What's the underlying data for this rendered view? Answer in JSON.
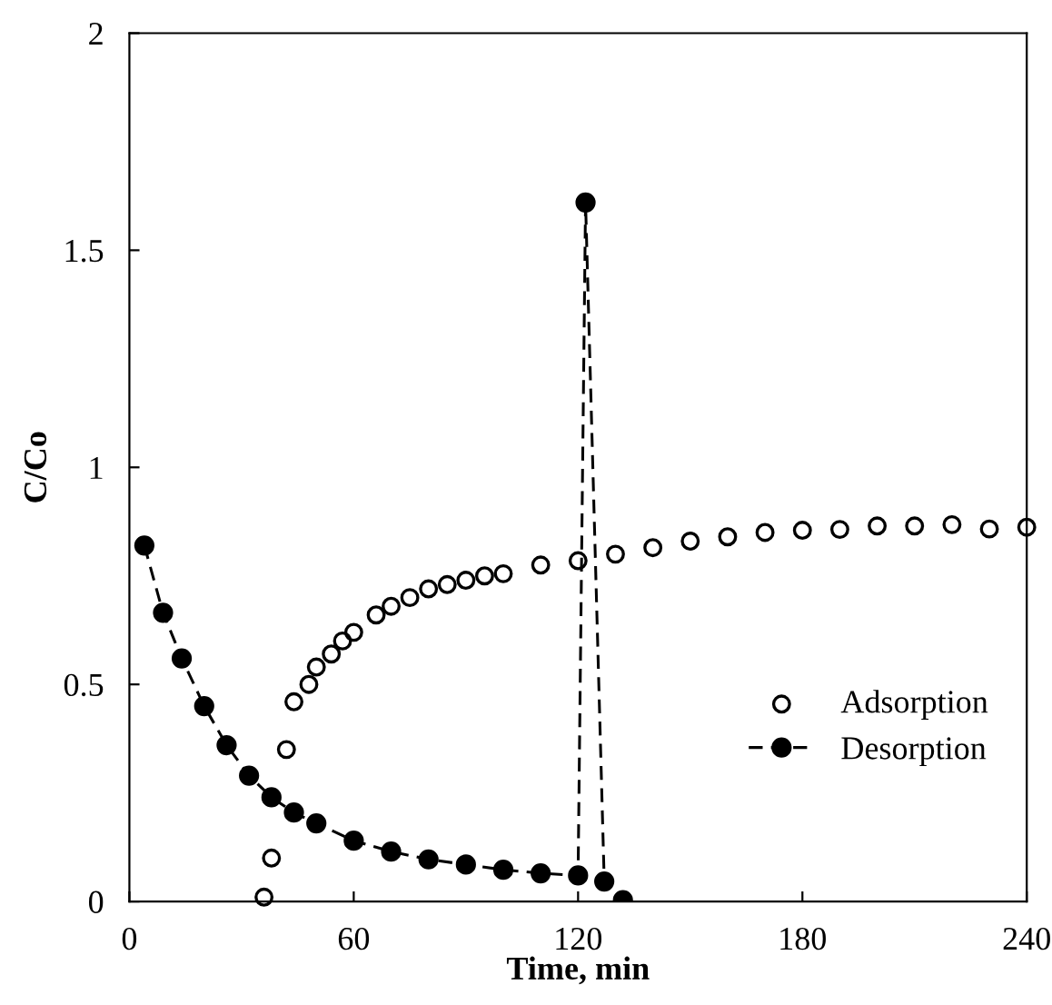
{
  "chart_data": {
    "type": "scatter",
    "xlabel": "Time, min",
    "ylabel": "C/Co",
    "xlim": [
      0,
      240
    ],
    "ylim": [
      0,
      2
    ],
    "xticks": [
      0,
      60,
      120,
      180,
      240
    ],
    "yticks": [
      0,
      0.5,
      1,
      1.5,
      2
    ],
    "grid": false,
    "legend": "right",
    "marker": "circle",
    "series": [
      {
        "name": "Adsorption",
        "color": "#000000",
        "x": [
          36,
          38,
          42,
          44,
          48,
          50,
          54,
          57,
          60,
          66,
          70,
          75,
          80,
          85,
          90,
          95,
          100,
          110,
          120,
          130,
          140,
          150,
          160,
          170,
          180,
          190,
          200,
          210,
          220,
          230,
          240
        ],
        "values": [
          0.01,
          0.1,
          0.35,
          0.46,
          0.5,
          0.54,
          0.57,
          0.6,
          0.62,
          0.66,
          0.68,
          0.7,
          0.72,
          0.73,
          0.74,
          0.75,
          0.755,
          0.775,
          0.785,
          0.8,
          0.815,
          0.83,
          0.84,
          0.85,
          0.855,
          0.857,
          0.865,
          0.865,
          0.868,
          0.858,
          0.862
        ]
      },
      {
        "name": "Desorption",
        "type": "line",
        "line_style": "dashed",
        "color": "#000000",
        "x": [
          4,
          9,
          14,
          20,
          26,
          32,
          38,
          44,
          50,
          60,
          70,
          80,
          90,
          100,
          110,
          120,
          122,
          127,
          132
        ],
        "values": [
          0.82,
          0.665,
          0.56,
          0.45,
          0.36,
          0.29,
          0.24,
          0.205,
          0.18,
          0.14,
          0.115,
          0.097,
          0.085,
          0.073,
          0.065,
          0.06,
          1.61,
          0.046,
          0.003
        ]
      }
    ]
  }
}
